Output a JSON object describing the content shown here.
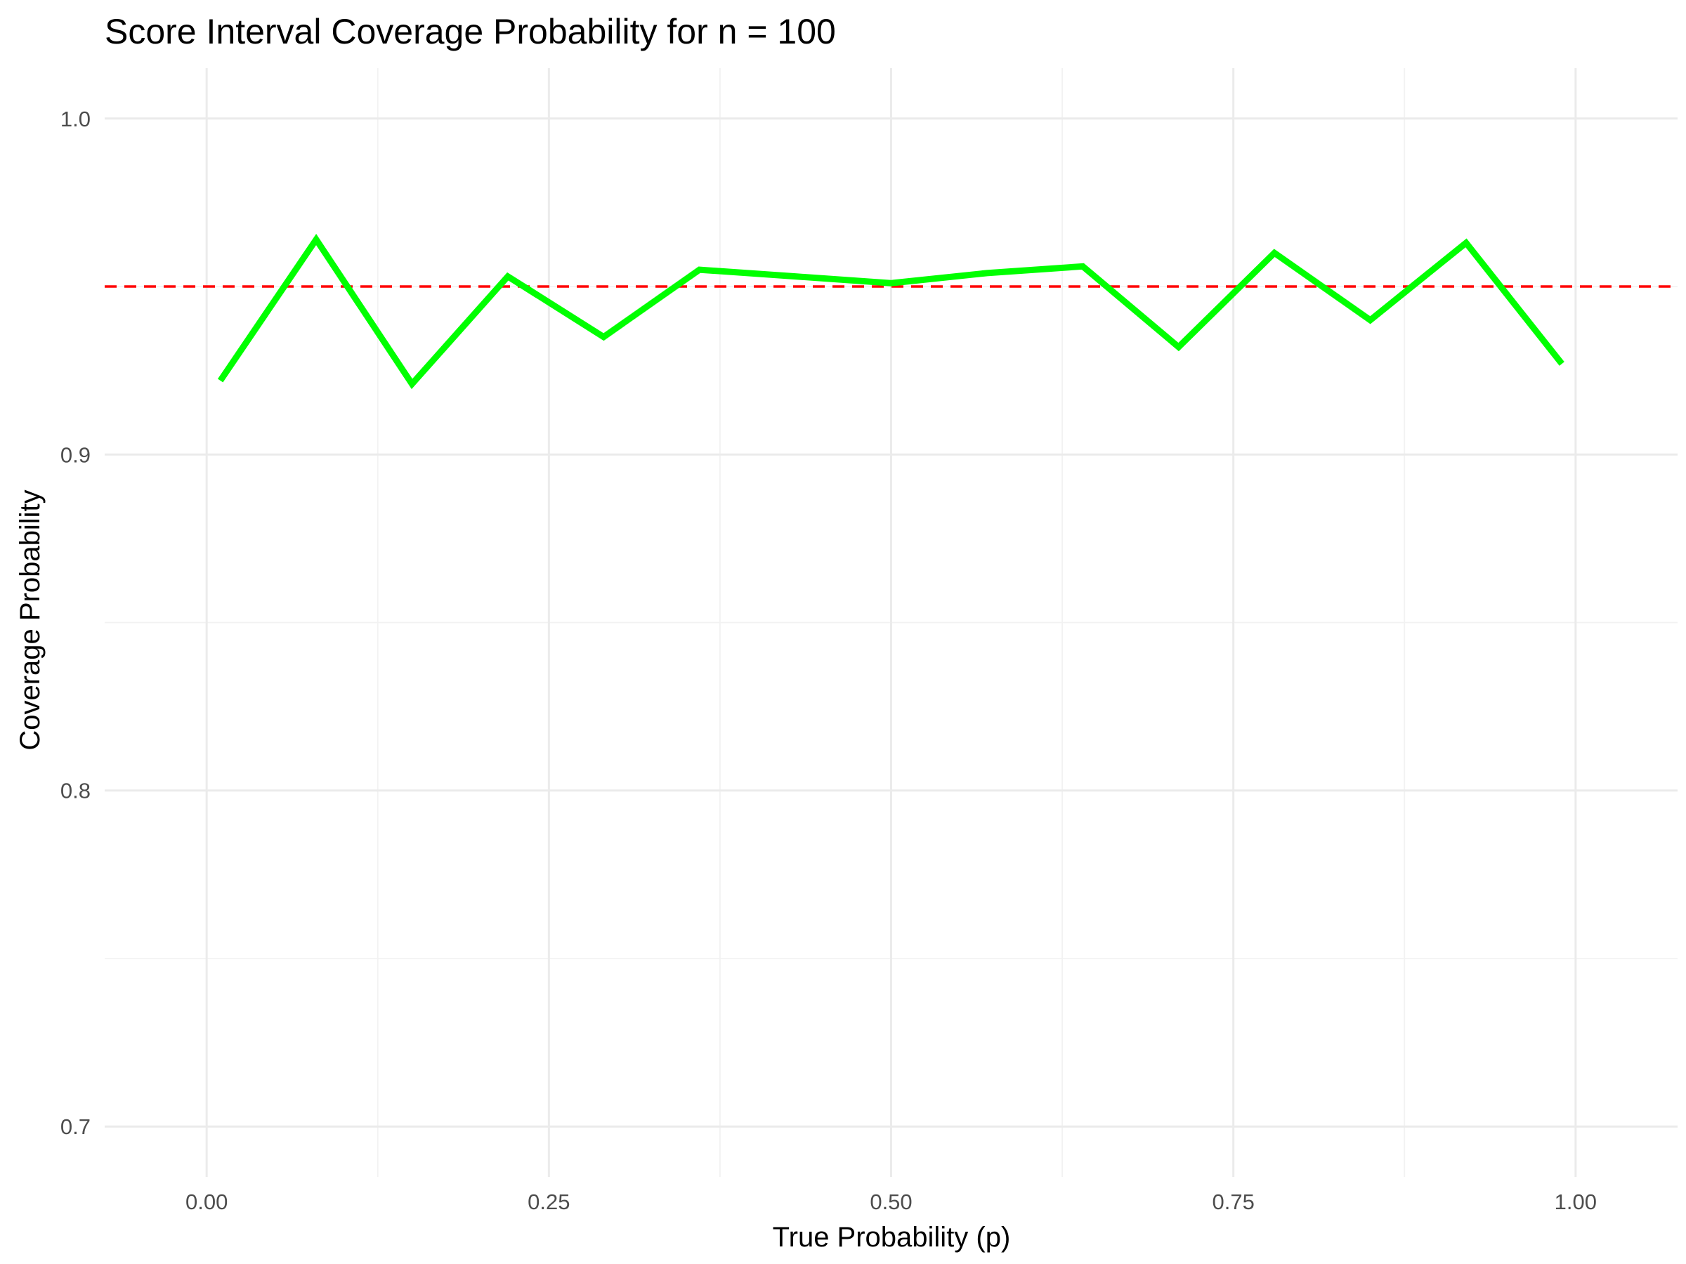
{
  "chart_data": {
    "type": "line",
    "title": "Score Interval Coverage Probability for n = 100",
    "xlabel": "True Probability (p)",
    "ylabel": "Coverage Probability",
    "xlim": [
      -0.0745,
      1.0745
    ],
    "ylim": [
      0.685,
      1.015
    ],
    "x_ticks": [
      0,
      0.25,
      0.5,
      0.75,
      1
    ],
    "x_tick_labels": [
      "0.00",
      "0.25",
      "0.50",
      "0.75",
      "1.00"
    ],
    "y_ticks": [
      0.7,
      0.8,
      0.9,
      1.0
    ],
    "y_tick_labels": [
      "0.7",
      "0.8",
      "0.9",
      "1.0"
    ],
    "grid": true,
    "reference_line": {
      "y": 0.95,
      "color": "#ff0000",
      "style": "dashed"
    },
    "series": [
      {
        "color": "#00ff00",
        "x": [
          0.01,
          0.08,
          0.15,
          0.22,
          0.29,
          0.36,
          0.43,
          0.5,
          0.57,
          0.64,
          0.71,
          0.78,
          0.85,
          0.92,
          0.99
        ],
        "y": [
          0.922,
          0.964,
          0.921,
          0.953,
          0.935,
          0.955,
          0.953,
          0.951,
          0.954,
          0.956,
          0.932,
          0.96,
          0.94,
          0.963,
          0.927
        ]
      }
    ]
  }
}
